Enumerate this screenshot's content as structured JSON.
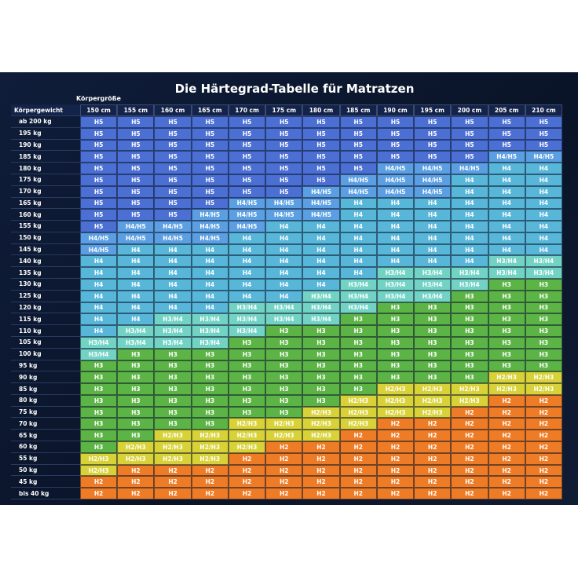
{
  "title": "Die Härtegrad-Tabelle für Matratzen",
  "corner_label": "Körpergewicht",
  "height_label": "Körpergröße",
  "heights": [
    "150 cm",
    "155 cm",
    "160 cm",
    "165 cm",
    "170 cm",
    "175 cm",
    "180 cm",
    "185 cm",
    "190 cm",
    "195 cm",
    "200 cm",
    "205 cm",
    "210 cm"
  ],
  "weights": [
    "ab 200 kg",
    "195 kg",
    "190 kg",
    "185 kg",
    "180 kg",
    "175 kg",
    "170 kg",
    "165 kg",
    "160 kg",
    "155 kg",
    "150 kg",
    "145 kg",
    "140 kg",
    "135 kg",
    "130 kg",
    "125 kg",
    "120 kg",
    "115 kg",
    "110 kg",
    "105 kg",
    "100 kg",
    "95 kg",
    "90 kg",
    "85 kg",
    "80 kg",
    "75 kg",
    "70 kg",
    "65 kg",
    "60 kg",
    "55 kg",
    "50 kg",
    "45 kg",
    "bis 40 kg"
  ],
  "cells": [
    [
      "H5",
      "H5",
      "H5",
      "H5",
      "H5",
      "H5",
      "H5",
      "H5",
      "H5",
      "H5",
      "H5",
      "H5",
      "H5"
    ],
    [
      "H5",
      "H5",
      "H5",
      "H5",
      "H5",
      "H5",
      "H5",
      "H5",
      "H5",
      "H5",
      "H5",
      "H5",
      "H5"
    ],
    [
      "H5",
      "H5",
      "H5",
      "H5",
      "H5",
      "H5",
      "H5",
      "H5",
      "H5",
      "H5",
      "H5",
      "H5",
      "H5"
    ],
    [
      "H5",
      "H5",
      "H5",
      "H5",
      "H5",
      "H5",
      "H5",
      "H5",
      "H5",
      "H5",
      "H5",
      "H4/H5",
      "H4/H5"
    ],
    [
      "H5",
      "H5",
      "H5",
      "H5",
      "H5",
      "H5",
      "H5",
      "H5",
      "H4/H5",
      "H4/H5",
      "H4/H5",
      "H4",
      "H4"
    ],
    [
      "H5",
      "H5",
      "H5",
      "H5",
      "H5",
      "H5",
      "H5",
      "H4/H5",
      "H4/H5",
      "H4/H5",
      "H4",
      "H4",
      "H4"
    ],
    [
      "H5",
      "H5",
      "H5",
      "H5",
      "H5",
      "H5",
      "H4/H5",
      "H4/H5",
      "H4/H5",
      "H4/H5",
      "H4",
      "H4",
      "H4"
    ],
    [
      "H5",
      "H5",
      "H5",
      "H5",
      "H4/H5",
      "H4/H5",
      "H4/H5",
      "H4",
      "H4",
      "H4",
      "H4",
      "H4",
      "H4"
    ],
    [
      "H5",
      "H5",
      "H5",
      "H4/H5",
      "H4/H5",
      "H4/H5",
      "H4/H5",
      "H4",
      "H4",
      "H4",
      "H4",
      "H4",
      "H4"
    ],
    [
      "H5",
      "H4/H5",
      "H4/H5",
      "H4/H5",
      "H4/H5",
      "H4",
      "H4",
      "H4",
      "H4",
      "H4",
      "H4",
      "H4",
      "H4"
    ],
    [
      "H4/H5",
      "H4/H5",
      "H4/H5",
      "H4/H5",
      "H4",
      "H4",
      "H4",
      "H4",
      "H4",
      "H4",
      "H4",
      "H4",
      "H4"
    ],
    [
      "H4/H5",
      "H4",
      "H4",
      "H4",
      "H4",
      "H4",
      "H4",
      "H4",
      "H4",
      "H4",
      "H4",
      "H4",
      "H4"
    ],
    [
      "H4",
      "H4",
      "H4",
      "H4",
      "H4",
      "H4",
      "H4",
      "H4",
      "H4",
      "H4",
      "H4",
      "H3/H4",
      "H3/H4"
    ],
    [
      "H4",
      "H4",
      "H4",
      "H4",
      "H4",
      "H4",
      "H4",
      "H4",
      "H3/H4",
      "H3/H4",
      "H3/H4",
      "H3/H4",
      "H3/H4"
    ],
    [
      "H4",
      "H4",
      "H4",
      "H4",
      "H4",
      "H4",
      "H4",
      "H3/H4",
      "H3/H4",
      "H3/H4",
      "H3/H4",
      "H3",
      "H3"
    ],
    [
      "H4",
      "H4",
      "H4",
      "H4",
      "H4",
      "H4",
      "H3/H4",
      "H3/H4",
      "H3/H4",
      "H3/H4",
      "H3",
      "H3",
      "H3"
    ],
    [
      "H4",
      "H4",
      "H4",
      "H4",
      "H3/H4",
      "H3/H4",
      "H3/H4",
      "H3/H4",
      "H3",
      "H3",
      "H3",
      "H3",
      "H3"
    ],
    [
      "H4",
      "H4",
      "H3/H4",
      "H3/H4",
      "H3/H4",
      "H3/H4",
      "H3/H4",
      "H3",
      "H3",
      "H3",
      "H3",
      "H3",
      "H3"
    ],
    [
      "H4",
      "H3/H4",
      "H3/H4",
      "H3/H4",
      "H3/H4",
      "H3",
      "H3",
      "H3",
      "H3",
      "H3",
      "H3",
      "H3",
      "H3"
    ],
    [
      "H3/H4",
      "H3/H4",
      "H3/H4",
      "H3/H4",
      "H3",
      "H3",
      "H3",
      "H3",
      "H3",
      "H3",
      "H3",
      "H3",
      "H3"
    ],
    [
      "H3/H4",
      "H3",
      "H3",
      "H3",
      "H3",
      "H3",
      "H3",
      "H3",
      "H3",
      "H3",
      "H3",
      "H3",
      "H3"
    ],
    [
      "H3",
      "H3",
      "H3",
      "H3",
      "H3",
      "H3",
      "H3",
      "H3",
      "H3",
      "H3",
      "H3",
      "H3",
      "H3"
    ],
    [
      "H3",
      "H3",
      "H3",
      "H3",
      "H3",
      "H3",
      "H3",
      "H3",
      "H3",
      "H3",
      "H3",
      "H2/H3",
      "H2/H3"
    ],
    [
      "H3",
      "H3",
      "H3",
      "H3",
      "H3",
      "H3",
      "H3",
      "H3",
      "H2/H3",
      "H2/H3",
      "H2/H3",
      "H2/H3",
      "H2/H3"
    ],
    [
      "H3",
      "H3",
      "H3",
      "H3",
      "H3",
      "H3",
      "H3",
      "H2/H3",
      "H2/H3",
      "H2/H3",
      "H2/H3",
      "H2",
      "H2"
    ],
    [
      "H3",
      "H3",
      "H3",
      "H3",
      "H3",
      "H3",
      "H2/H3",
      "H2/H3",
      "H2/H3",
      "H2/H3",
      "H2",
      "H2",
      "H2"
    ],
    [
      "H3",
      "H3",
      "H3",
      "H3",
      "H2/H3",
      "H2/H3",
      "H2/H3",
      "H2/H3",
      "H2",
      "H2",
      "H2",
      "H2",
      "H2"
    ],
    [
      "H3",
      "H3",
      "H2/H3",
      "H2/H3",
      "H2/H3",
      "H2/H3",
      "H2/H3",
      "H2",
      "H2",
      "H2",
      "H2",
      "H2",
      "H2"
    ],
    [
      "H3",
      "H2/H3",
      "H2/H3",
      "H2/H3",
      "H2/H3",
      "H2",
      "H2",
      "H2",
      "H2",
      "H2",
      "H2",
      "H2",
      "H2"
    ],
    [
      "H2/H3",
      "H2/H3",
      "H2/H3",
      "H2/H3",
      "H2",
      "H2",
      "H2",
      "H2",
      "H2",
      "H2",
      "H2",
      "H2",
      "H2"
    ],
    [
      "H2/H3",
      "H2",
      "H2",
      "H2",
      "H2",
      "H2",
      "H2",
      "H2",
      "H2",
      "H2",
      "H2",
      "H2",
      "H2"
    ],
    [
      "H2",
      "H2",
      "H2",
      "H2",
      "H2",
      "H2",
      "H2",
      "H2",
      "H2",
      "H2",
      "H2",
      "H2",
      "H2"
    ],
    [
      "H2",
      "H2",
      "H2",
      "H2",
      "H2",
      "H2",
      "H2",
      "H2",
      "H2",
      "H2",
      "H2",
      "H2",
      "H2"
    ]
  ]
}
